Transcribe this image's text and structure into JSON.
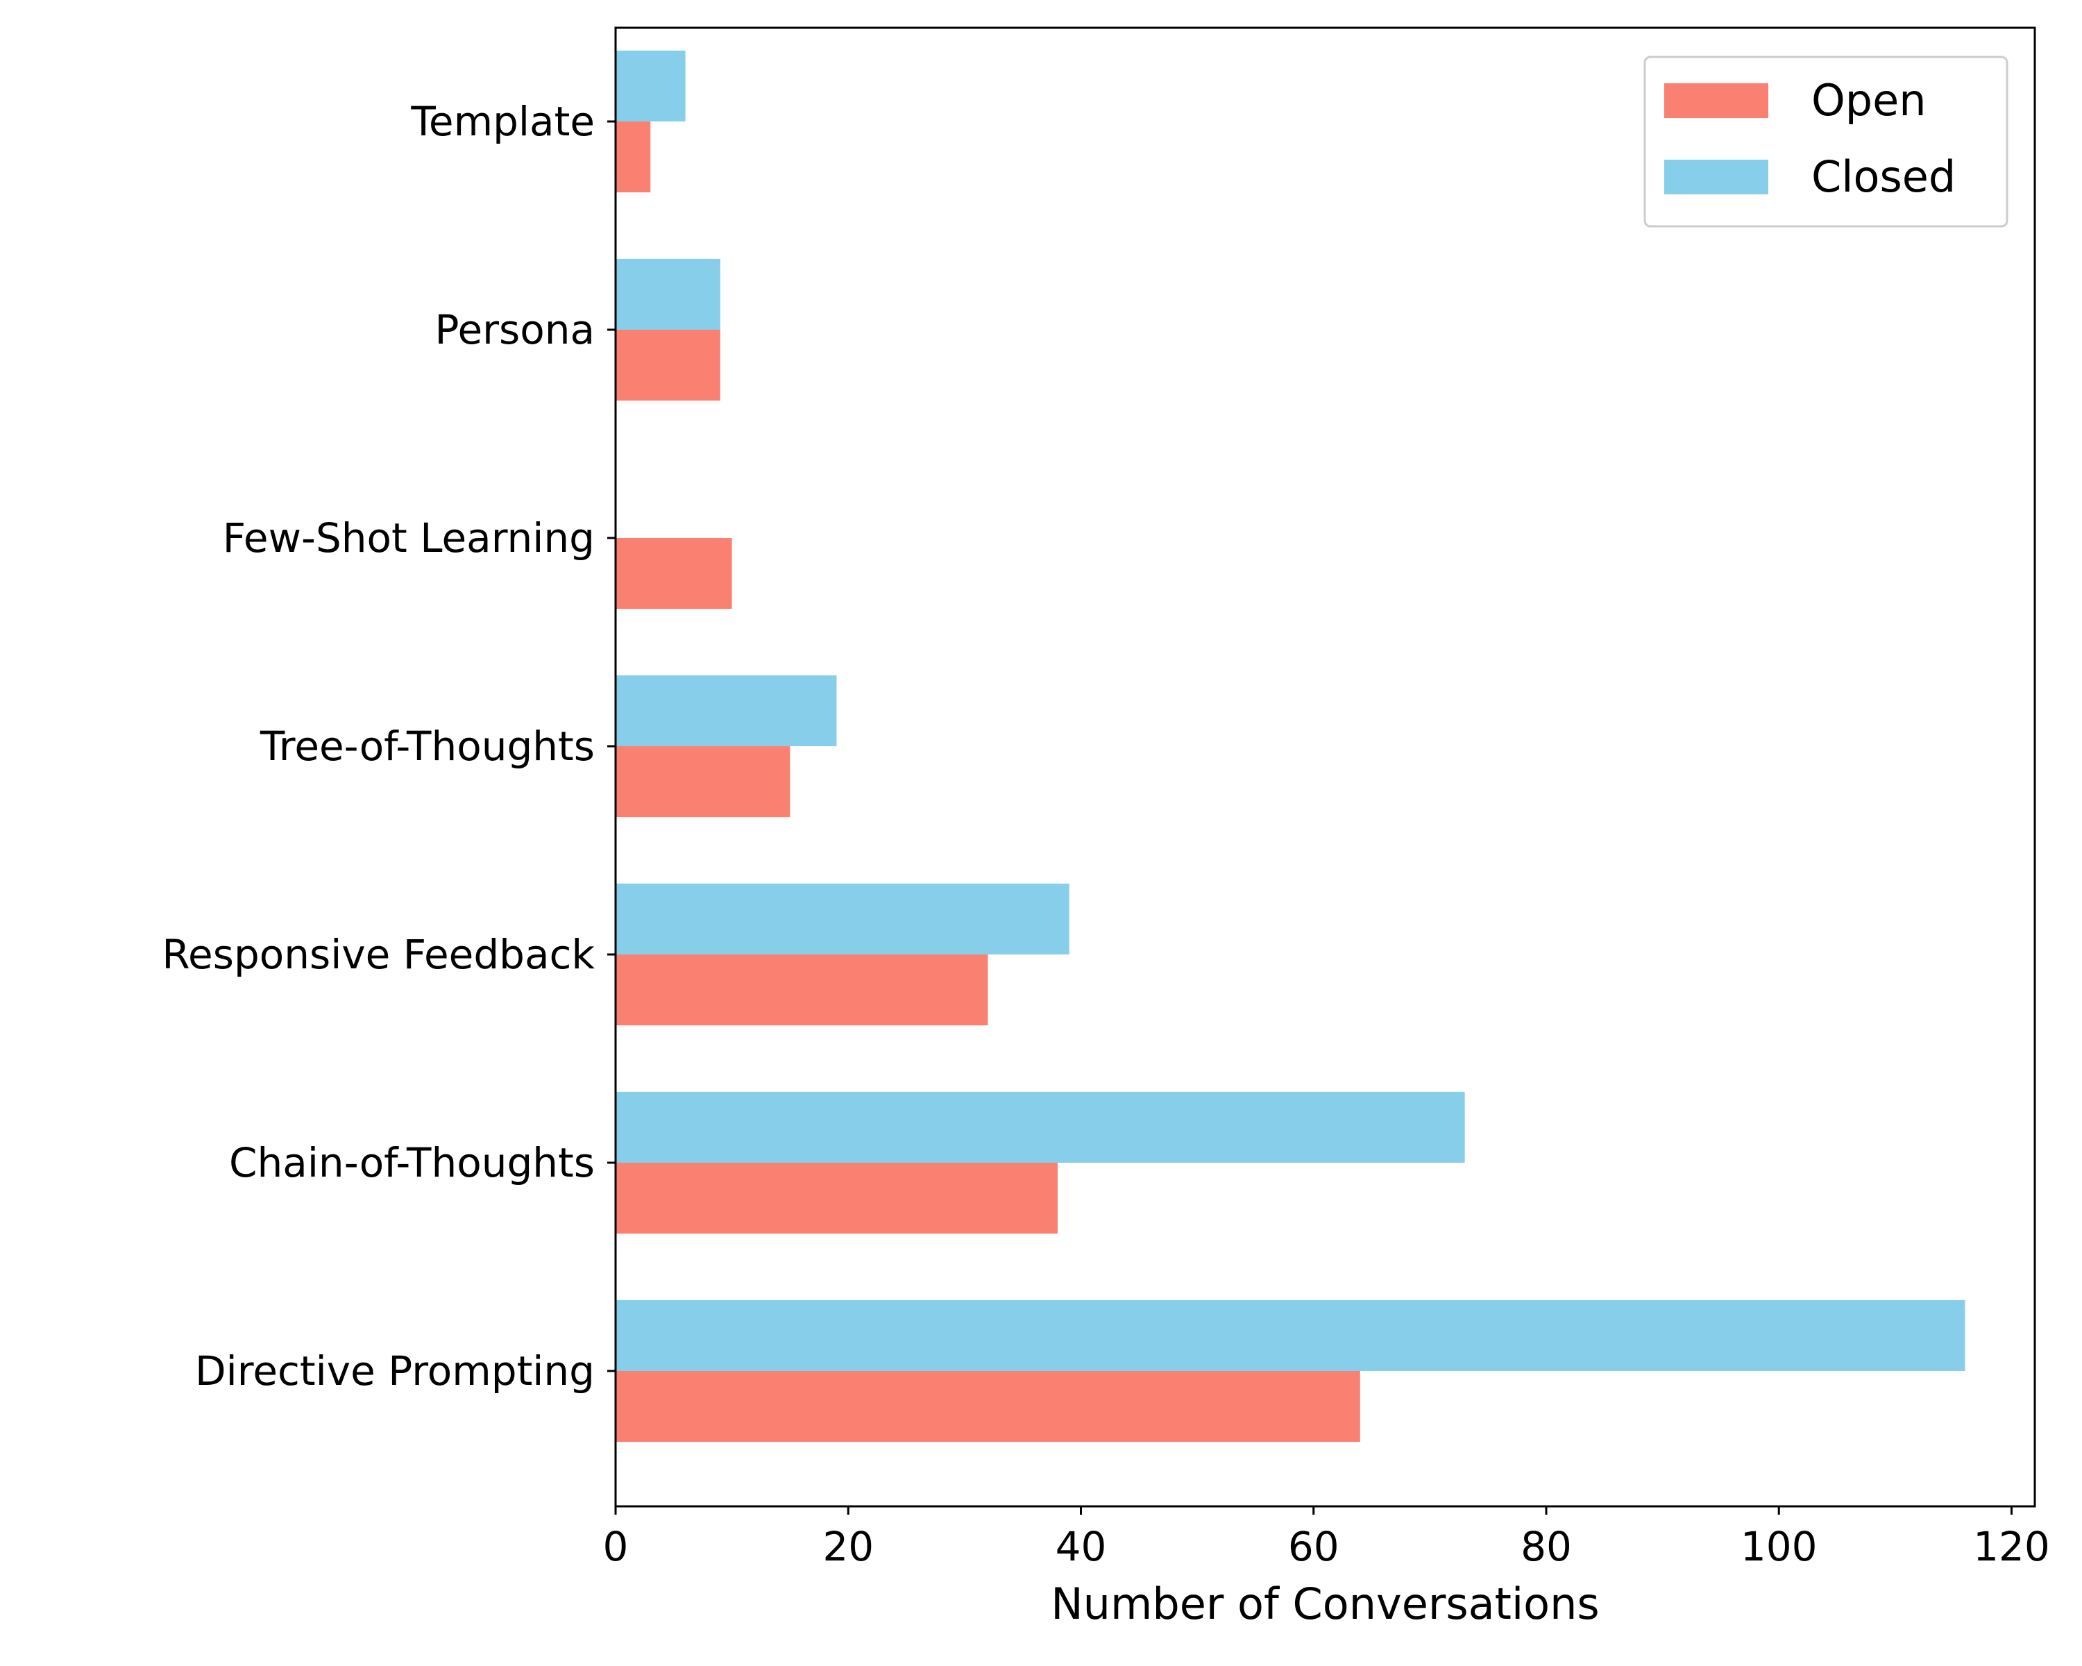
{
  "chart_data": {
    "type": "bar",
    "orientation": "horizontal",
    "categories": [
      "Directive Prompting",
      "Chain-of-Thoughts",
      "Responsive Feedback",
      "Tree-of-Thoughts",
      "Few-Shot Learning",
      "Persona",
      "Template"
    ],
    "series": [
      {
        "name": "Open",
        "values": [
          64,
          38,
          32,
          15,
          10,
          9,
          3
        ],
        "color": "#fa8072"
      },
      {
        "name": "Closed",
        "values": [
          116,
          73,
          39,
          19,
          0,
          9,
          6
        ],
        "color": "#87ceeb"
      }
    ],
    "xlabel": "Number of Conversations",
    "ylabel": "",
    "xlim": [
      0,
      122
    ],
    "xticks": [
      "0",
      "20",
      "40",
      "60",
      "80",
      "100",
      "120"
    ],
    "grid": false,
    "legend_position": "top-right"
  }
}
